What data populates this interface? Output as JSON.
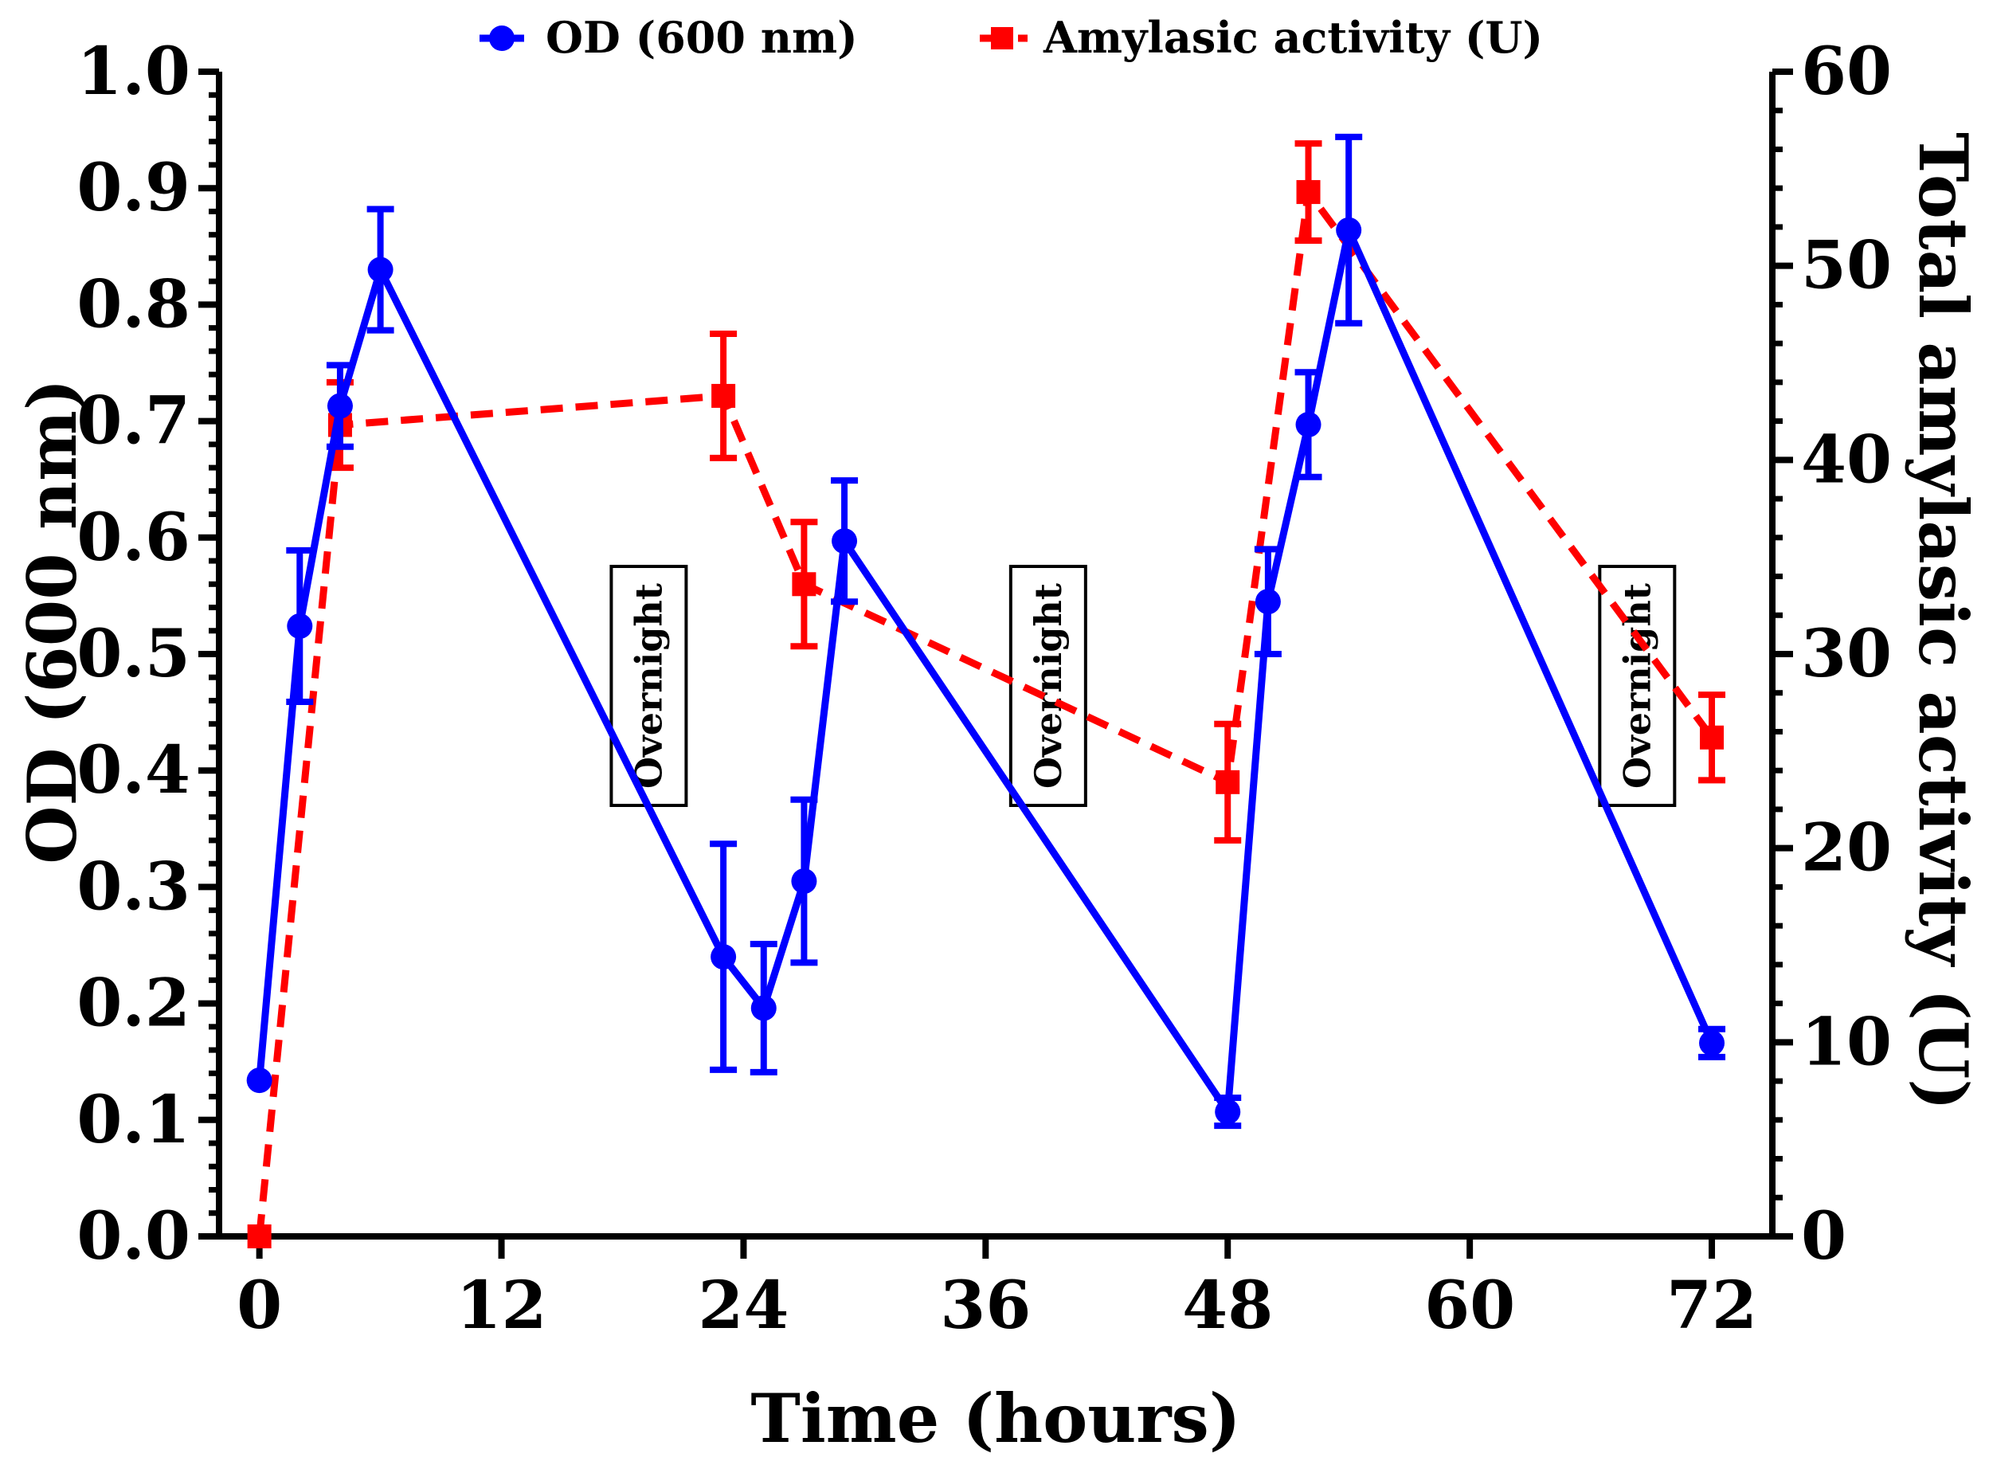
{
  "chart_data": {
    "type": "line",
    "title": "",
    "xlabel": "Time (hours)",
    "ylabel": "OD (600 nm)",
    "y2label": "Total amylasic activity (U)",
    "xlim": [
      -2,
      75
    ],
    "ylim": [
      0,
      1.0
    ],
    "y2lim": [
      0,
      60
    ],
    "xticks": [
      0,
      12,
      24,
      36,
      48,
      60,
      72
    ],
    "yticks": [
      0.0,
      0.1,
      0.2,
      0.3,
      0.4,
      0.5,
      0.6,
      0.7,
      0.8,
      0.9,
      1.0
    ],
    "y2ticks": [
      0,
      10,
      20,
      30,
      40,
      50,
      60
    ],
    "ytick_labels": [
      "0.0",
      "0.1",
      "0.2",
      "0.3",
      "0.4",
      "0.5",
      "0.6",
      "0.7",
      "0.8",
      "0.9",
      "1.0"
    ],
    "y2tick_labels": [
      "0",
      "10",
      "20",
      "30",
      "40",
      "50",
      "60"
    ],
    "xtick_labels": [
      "0",
      "12",
      "24",
      "36",
      "48",
      "60",
      "72"
    ],
    "legend_position": "top",
    "series": [
      {
        "name": "OD (600 nm)",
        "axis": "left",
        "color": "#0000ff",
        "line_style": "solid",
        "marker": "circle",
        "x": [
          0,
          2,
          4,
          6,
          23,
          25,
          27,
          29,
          48,
          50,
          52,
          54,
          72
        ],
        "y": [
          0.134,
          0.524,
          0.713,
          0.83,
          0.24,
          0.196,
          0.305,
          0.597,
          0.107,
          0.545,
          0.697,
          0.864,
          0.166
        ],
        "err": [
          0.0,
          0.065,
          0.035,
          0.052,
          0.097,
          0.055,
          0.07,
          0.052,
          0.012,
          0.045,
          0.045,
          0.08,
          0.012
        ]
      },
      {
        "name": "Amylasic activity (U)",
        "axis": "right",
        "color": "#ff0000",
        "line_style": "dashed",
        "marker": "square",
        "x": [
          0,
          4,
          23,
          27,
          48,
          52,
          72
        ],
        "y": [
          0.0,
          41.8,
          43.3,
          33.6,
          23.4,
          53.8,
          25.7
        ],
        "err": [
          0.0,
          2.2,
          3.2,
          3.2,
          3.0,
          2.5,
          2.2
        ]
      }
    ],
    "annotations": [
      {
        "text": "Overnight",
        "x": 19.3,
        "y": 0.5
      },
      {
        "text": "Overnight",
        "x": 39.1,
        "y": 0.5
      },
      {
        "text": "Overnight",
        "x": 68.3,
        "y": 0.5
      }
    ]
  }
}
